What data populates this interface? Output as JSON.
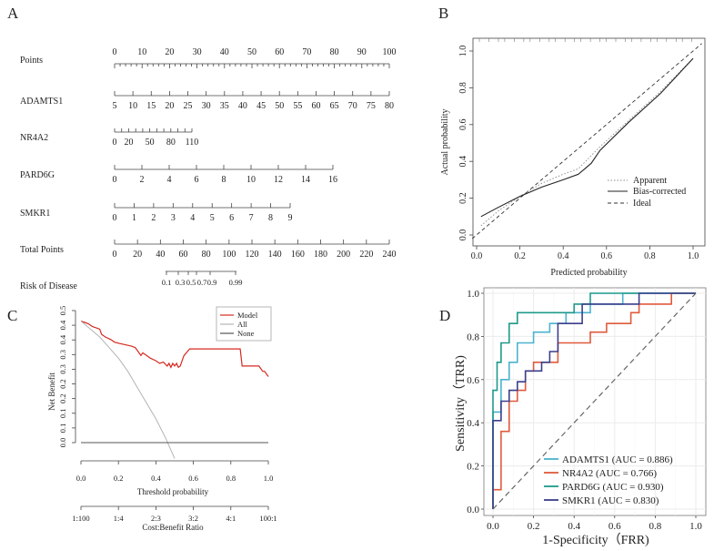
{
  "panels": [
    "A",
    "B",
    "C",
    "D"
  ],
  "chart_data": [
    {
      "type": "nomogram",
      "panel": "A",
      "rows": [
        {
          "label": "Points",
          "ticks": [
            "0",
            "10",
            "20",
            "30",
            "40",
            "50",
            "60",
            "70",
            "80",
            "90",
            "100"
          ],
          "range": [
            0,
            100
          ]
        },
        {
          "label": "ADAMTS1",
          "ticks": [
            "5",
            "10",
            "15",
            "20",
            "25",
            "30",
            "35",
            "40",
            "45",
            "50",
            "55",
            "60",
            "65",
            "70",
            "75",
            "80"
          ],
          "range": [
            5,
            80
          ]
        },
        {
          "label": "NR4A2",
          "ticks": [
            "0",
            "20",
            "50",
            "80",
            "110"
          ],
          "range": [
            0,
            110
          ]
        },
        {
          "label": "PARD6G",
          "ticks": [
            "0",
            "2",
            "4",
            "6",
            "8",
            "10",
            "12",
            "14",
            "16"
          ],
          "range": [
            0,
            16
          ]
        },
        {
          "label": "SMKR1",
          "ticks": [
            "0",
            "1",
            "2",
            "3",
            "4",
            "5",
            "6",
            "7",
            "8",
            "9"
          ],
          "range": [
            0,
            9
          ]
        },
        {
          "label": "Total Points",
          "ticks": [
            "0",
            "20",
            "40",
            "60",
            "80",
            "100",
            "120",
            "140",
            "160",
            "180",
            "200",
            "220",
            "240"
          ],
          "range": [
            0,
            240
          ]
        },
        {
          "label": "Risk of Disease",
          "ticks": [
            "0.1",
            "0.3",
            "0.5",
            "0.7",
            "0.9",
            "0.99"
          ]
        }
      ]
    },
    {
      "type": "line",
      "panel": "B",
      "title": "",
      "xlabel": "Predicted probability",
      "ylabel": "Actual probability",
      "xlim": [
        0,
        1
      ],
      "ylim": [
        0,
        1
      ],
      "xticks": [
        "0.0",
        "0.2",
        "0.4",
        "0.6",
        "0.8",
        "1.0"
      ],
      "yticks": [
        "0.0",
        "0.2",
        "0.4",
        "0.6",
        "0.8",
        "1.0"
      ],
      "legend": [
        "Apparent",
        "Bias-corrected",
        "Ideal"
      ],
      "series": [
        {
          "name": "Ideal",
          "x": [
            -0.02,
            1.04
          ],
          "y": [
            -0.02,
            1.04
          ]
        },
        {
          "name": "Apparent",
          "x": [
            0.02,
            0.1,
            0.2,
            0.3,
            0.4,
            0.47,
            0.52,
            0.57,
            0.7,
            0.85,
            1.0
          ],
          "y": [
            0.05,
            0.13,
            0.21,
            0.28,
            0.33,
            0.36,
            0.42,
            0.48,
            0.62,
            0.78,
            0.96
          ]
        },
        {
          "name": "Bias-corrected",
          "x": [
            0.02,
            0.1,
            0.2,
            0.3,
            0.4,
            0.47,
            0.5,
            0.53,
            0.57,
            0.7,
            0.85,
            1.0
          ],
          "y": [
            0.1,
            0.15,
            0.21,
            0.26,
            0.3,
            0.33,
            0.36,
            0.39,
            0.46,
            0.61,
            0.77,
            0.96
          ]
        }
      ]
    },
    {
      "type": "line",
      "panel": "C",
      "xlabel": "Threshold probability",
      "x2label": "Cost:Benefit Ratio",
      "ylabel": "Net Benefit",
      "xlim": [
        0,
        1
      ],
      "ylim": [
        -0.05,
        0.5
      ],
      "xticks": [
        "0.0",
        "0.2",
        "0.4",
        "0.6",
        "0.8",
        "1.0"
      ],
      "x2ticks": [
        "1:100",
        "1:4",
        "2:3",
        "3:2",
        "4:1",
        "100:1"
      ],
      "yticks": [
        "0.0",
        "0.1",
        "0.1",
        "0.2",
        "0.2",
        "0.3",
        "0.3",
        "0.4",
        "0.4",
        "0.5"
      ],
      "legend": [
        "Model",
        "All",
        "None"
      ],
      "series": [
        {
          "name": "Model",
          "x": [
            0,
            0.02,
            0.04,
            0.06,
            0.1,
            0.11,
            0.13,
            0.16,
            0.18,
            0.21,
            0.24,
            0.27,
            0.29,
            0.3,
            0.32,
            0.33,
            0.35,
            0.37,
            0.4,
            0.42,
            0.44,
            0.46,
            0.47,
            0.48,
            0.49,
            0.5,
            0.51,
            0.52,
            0.53,
            0.54,
            0.55,
            0.58,
            0.6,
            0.8,
            0.85,
            0.86,
            0.9,
            0.95,
            0.97,
            0.98,
            1.0
          ],
          "y": [
            0.46,
            0.455,
            0.45,
            0.44,
            0.43,
            0.41,
            0.4,
            0.39,
            0.38,
            0.375,
            0.37,
            0.365,
            0.36,
            0.35,
            0.33,
            0.34,
            0.33,
            0.32,
            0.31,
            0.3,
            0.305,
            0.29,
            0.3,
            0.285,
            0.3,
            0.29,
            0.3,
            0.285,
            0.29,
            0.31,
            0.33,
            0.355,
            0.355,
            0.355,
            0.355,
            0.29,
            0.29,
            0.29,
            0.27,
            0.27,
            0.25
          ]
        },
        {
          "name": "All",
          "x": [
            0,
            0.05,
            0.1,
            0.15,
            0.2,
            0.25,
            0.3,
            0.35,
            0.4,
            0.45,
            0.5
          ],
          "y": [
            0.46,
            0.43,
            0.4,
            0.36,
            0.32,
            0.27,
            0.21,
            0.15,
            0.09,
            0.02,
            -0.06
          ]
        },
        {
          "name": "None",
          "x": [
            0,
            1
          ],
          "y": [
            0,
            0
          ]
        }
      ]
    },
    {
      "type": "line",
      "panel": "D",
      "xlabel": "1-Specificity（FRR)",
      "ylabel": "Sensitivity（TRR)",
      "xlim": [
        0,
        1
      ],
      "ylim": [
        0,
        1
      ],
      "xticks": [
        "0.0",
        "0.2",
        "0.4",
        "0.6",
        "0.8",
        "1.0"
      ],
      "yticks": [
        "0.0",
        "0.2",
        "0.4",
        "0.6",
        "0.8",
        "1.0"
      ],
      "legend": [
        "ADAMTS1 (AUC = 0.886)",
        "NR4A2 (AUC = 0.766)",
        "PARD6G (AUC = 0.930)",
        "SMKR1 (AUC = 0.830)"
      ],
      "series": [
        {
          "name": "ADAMTS1",
          "color": "#4bb3cf",
          "x": [
            0,
            0,
            0.04,
            0.04,
            0.08,
            0.08,
            0.12,
            0.12,
            0.2,
            0.2,
            0.28,
            0.28,
            0.36,
            0.36,
            0.48,
            0.48,
            0.64,
            0.64,
            1.0
          ],
          "y": [
            0,
            0.45,
            0.45,
            0.6,
            0.6,
            0.68,
            0.68,
            0.77,
            0.77,
            0.82,
            0.82,
            0.86,
            0.86,
            0.91,
            0.91,
            0.95,
            0.95,
            1.0,
            1.0
          ]
        },
        {
          "name": "NR4A2",
          "color": "#e05a3c",
          "x": [
            0,
            0,
            0.04,
            0.04,
            0.08,
            0.08,
            0.12,
            0.12,
            0.16,
            0.16,
            0.2,
            0.2,
            0.32,
            0.32,
            0.48,
            0.48,
            0.56,
            0.56,
            0.68,
            0.68,
            0.72,
            0.72,
            0.88,
            0.88,
            1.0
          ],
          "y": [
            0,
            0.09,
            0.09,
            0.36,
            0.36,
            0.5,
            0.5,
            0.55,
            0.55,
            0.64,
            0.64,
            0.68,
            0.68,
            0.77,
            0.77,
            0.82,
            0.82,
            0.86,
            0.86,
            0.91,
            0.91,
            0.95,
            0.95,
            1.0,
            1.0
          ]
        },
        {
          "name": "PARD6G",
          "color": "#1f9a8a",
          "x": [
            0,
            0,
            0.02,
            0.02,
            0.04,
            0.04,
            0.08,
            0.08,
            0.12,
            0.12,
            0.4,
            0.4,
            0.48,
            0.48,
            1.0
          ],
          "y": [
            0,
            0.55,
            0.55,
            0.68,
            0.68,
            0.77,
            0.77,
            0.86,
            0.86,
            0.91,
            0.91,
            0.95,
            0.95,
            1.0,
            1.0
          ]
        },
        {
          "name": "SMKR1",
          "color": "#3b3f8c",
          "x": [
            0,
            0,
            0.04,
            0.04,
            0.08,
            0.08,
            0.12,
            0.12,
            0.16,
            0.16,
            0.24,
            0.24,
            0.28,
            0.28,
            0.32,
            0.32,
            0.44,
            0.44,
            0.64,
            0.64,
            0.72,
            0.72,
            1.0
          ],
          "y": [
            0,
            0.41,
            0.41,
            0.5,
            0.5,
            0.55,
            0.55,
            0.59,
            0.59,
            0.64,
            0.64,
            0.68,
            0.68,
            0.73,
            0.73,
            0.86,
            0.86,
            0.95,
            0.95,
            0.95,
            0.95,
            1.0,
            1.0
          ]
        },
        {
          "name": "Reference",
          "color": "#666666",
          "x": [
            0,
            1
          ],
          "y": [
            0,
            1
          ]
        }
      ]
    }
  ]
}
